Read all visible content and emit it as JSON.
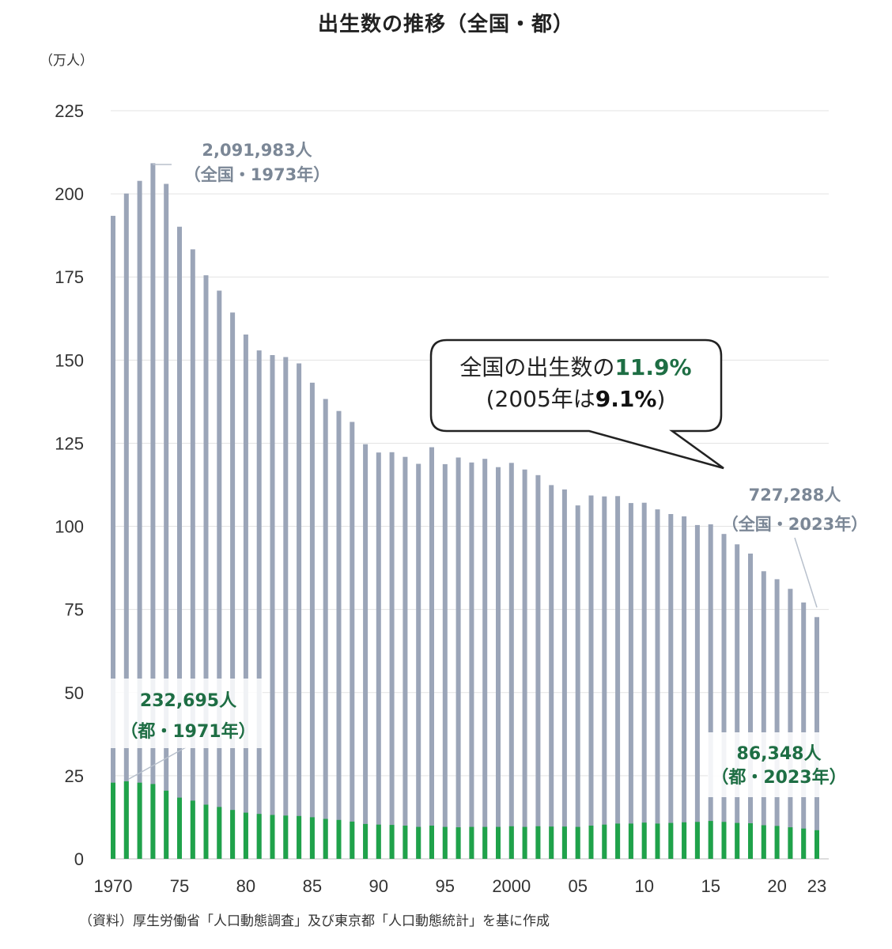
{
  "title": "出生数の推移（全国・都）",
  "unit_label": "（万人）",
  "source": "（資料）厚生労働省「人口動態調査」及び東京都「人口動態統計」を基に作成",
  "colors": {
    "national": "#9ba5b8",
    "tokyo": "#1fa24a",
    "tokyo_text": "#1e6e44",
    "national_text": "#7b8796",
    "grid": "#e3e3e3"
  },
  "callout": {
    "line1_prefix": "全国の出生数の",
    "line1_value": "11.9%",
    "line2_prefix": "(2005年は",
    "line2_value": "9.1%",
    "line2_suffix": ")"
  },
  "annotations": {
    "national_peak_value": "2,091,983人",
    "national_peak_label": "（全国・1973年）",
    "national_latest_value": "727,288人",
    "national_latest_label": "（全国・2023年）",
    "tokyo_peak_value": "232,695人",
    "tokyo_peak_label": "（都・1971年）",
    "tokyo_latest_value": "86,348人",
    "tokyo_latest_label": "（都・2023年）"
  },
  "chart_data": {
    "type": "bar",
    "title": "出生数の推移（全国・都）",
    "ylabel": "万人",
    "ylim": [
      0,
      225
    ],
    "yticks": [
      0,
      25,
      50,
      75,
      100,
      125,
      150,
      175,
      200,
      225
    ],
    "grid": true,
    "xtick_labels": [
      {
        "year": 1970,
        "label": "1970"
      },
      {
        "year": 1975,
        "label": "75"
      },
      {
        "year": 1980,
        "label": "80"
      },
      {
        "year": 1985,
        "label": "85"
      },
      {
        "year": 1990,
        "label": "90"
      },
      {
        "year": 1995,
        "label": "95"
      },
      {
        "year": 2000,
        "label": "2000"
      },
      {
        "year": 2005,
        "label": "05"
      },
      {
        "year": 2010,
        "label": "10"
      },
      {
        "year": 2015,
        "label": "15"
      },
      {
        "year": 2020,
        "label": "20"
      },
      {
        "year": 2023,
        "label": "23"
      }
    ],
    "categories": [
      1970,
      1971,
      1972,
      1973,
      1974,
      1975,
      1976,
      1977,
      1978,
      1979,
      1980,
      1981,
      1982,
      1983,
      1984,
      1985,
      1986,
      1987,
      1988,
      1989,
      1990,
      1991,
      1992,
      1993,
      1994,
      1995,
      1996,
      1997,
      1998,
      1999,
      2000,
      2001,
      2002,
      2003,
      2004,
      2005,
      2006,
      2007,
      2008,
      2009,
      2010,
      2011,
      2012,
      2013,
      2014,
      2015,
      2016,
      2017,
      2018,
      2019,
      2020,
      2021,
      2022,
      2023
    ],
    "series": [
      {
        "name": "全国",
        "values": [
          193.4,
          200.1,
          203.9,
          209.2,
          203.0,
          190.1,
          183.3,
          175.5,
          170.9,
          164.3,
          157.7,
          152.9,
          151.5,
          150.9,
          149.0,
          143.2,
          138.3,
          134.7,
          131.4,
          124.7,
          122.2,
          122.3,
          120.9,
          118.8,
          123.8,
          118.7,
          120.7,
          119.2,
          120.3,
          117.8,
          119.1,
          117.1,
          115.4,
          112.4,
          111.1,
          106.3,
          109.3,
          109.0,
          109.1,
          107.0,
          107.1,
          105.1,
          103.7,
          103.0,
          100.4,
          100.6,
          97.7,
          94.6,
          91.8,
          86.5,
          84.1,
          81.2,
          77.1,
          72.7
        ]
      },
      {
        "name": "都",
        "values": [
          22.9,
          23.3,
          22.9,
          22.5,
          20.5,
          18.4,
          17.5,
          16.3,
          15.6,
          14.7,
          13.9,
          13.5,
          13.2,
          13.0,
          12.9,
          12.5,
          12.0,
          11.7,
          11.2,
          10.5,
          10.3,
          10.2,
          10.0,
          9.6,
          10.0,
          9.6,
          9.5,
          9.6,
          9.6,
          9.6,
          9.8,
          9.6,
          9.8,
          9.7,
          9.7,
          9.6,
          10.0,
          10.3,
          10.6,
          10.6,
          10.9,
          10.6,
          10.8,
          11.0,
          11.1,
          11.4,
          11.1,
          10.8,
          10.7,
          10.1,
          9.9,
          9.5,
          9.1,
          8.6
        ]
      }
    ]
  }
}
